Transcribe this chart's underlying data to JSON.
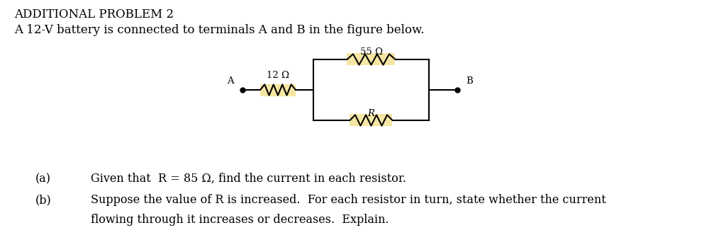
{
  "title_line1": "ADDITIONAL PROBLEM 2",
  "title_line2": "A 12-V battery is connected to terminals A and B in the figure below.",
  "part_a_label": "(a)",
  "part_a_text": "Given that  R = 85 Ω, find the current in each resistor.",
  "part_b_label": "(b)",
  "part_b_line1": "Suppose the value of R is increased.  For each resistor in turn, state whether the current",
  "part_b_line2": "flowing through it increases or decreases.  Explain.",
  "resistor_top_label": "55 Ω",
  "resistor_left_label": "12 Ω",
  "resistor_bottom_label": "R",
  "terminal_a": "A",
  "terminal_b": "B",
  "bg_color": "#ffffff",
  "text_color": "#000000",
  "resistor_highlight": "#f5e6a3",
  "circuit_color": "#000000",
  "font_size_title1": 12,
  "font_size_title2": 12,
  "font_size_body": 11.5,
  "font_size_circuit": 9.5,
  "fig_width": 10.24,
  "fig_height": 3.32
}
